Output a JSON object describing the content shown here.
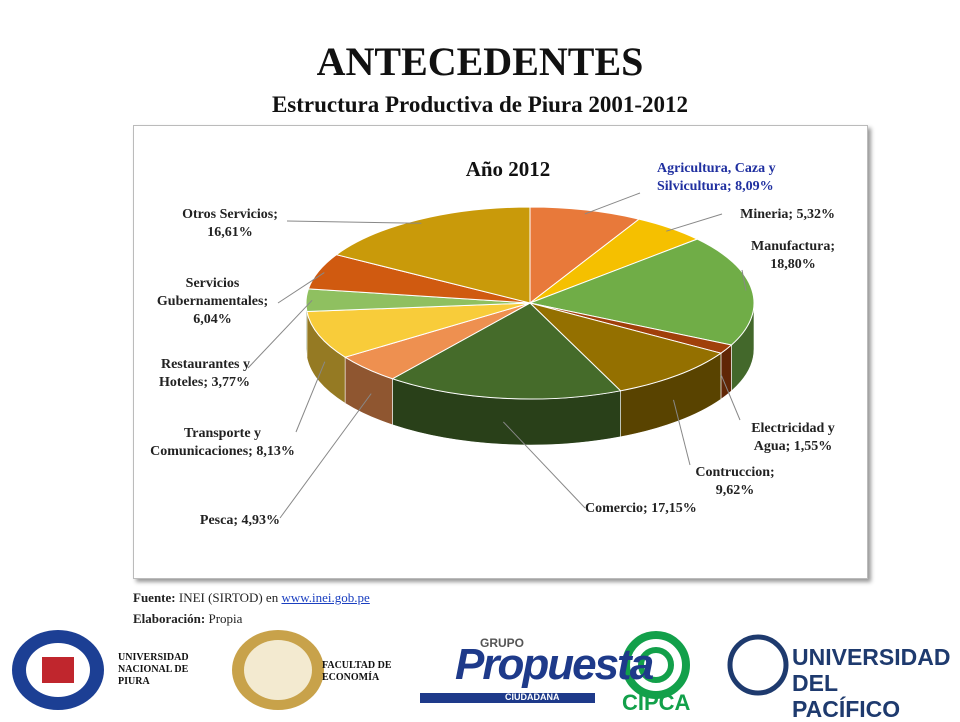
{
  "title": "ANTECEDENTES",
  "subtitle": "Estructura Productiva de Piura 2001-2012",
  "chart_data": {
    "type": "pie",
    "title": "Año 2012",
    "values": [
      8.09,
      5.32,
      18.8,
      1.55,
      9.62,
      17.15,
      4.93,
      8.13,
      3.77,
      6.04,
      16.61
    ],
    "value_labels": [
      "Agricultura, Caza y Silvicultura; 8,09%",
      "Mineria; 5,32%",
      "Manufactura; 18,80%",
      "Electricidad y Agua; 1,55%",
      "Contruccion; 9,62%",
      "Comercio; 17,15%",
      "Pesca; 4,93%",
      "Transporte y Comunicaciones; 8,13%",
      "Restaurantes y Hoteles; 3,77%",
      "Servicios Gubernamentales; 6,04%",
      "Otros Servicios; 16,61%"
    ],
    "colors": [
      "#e8793a",
      "#f5c000",
      "#70ad47",
      "#a0400a",
      "#947000",
      "#456b2a",
      "#ee9050",
      "#f8cc3a",
      "#8fc060",
      "#d05a10",
      "#c99a0a"
    ]
  },
  "source": {
    "label": "Fuente:",
    "text": "INEI (SIRTOD) en",
    "link": "www.inei.gob.pe"
  },
  "credit": {
    "label": "Elaboración:",
    "text": "Propia"
  },
  "logos": {
    "unp": "UNIVERSIDAD NACIONAL DE PIURA",
    "faculty": "FACULTAD DE ECONOMÍA",
    "grupo": "GRUPO",
    "propuesta": "Propuesta",
    "ciudadana": "CIUDADANA",
    "cipca": "CIPCA",
    "up": "UNIVERSIDAD DEL PACÍFICO"
  }
}
